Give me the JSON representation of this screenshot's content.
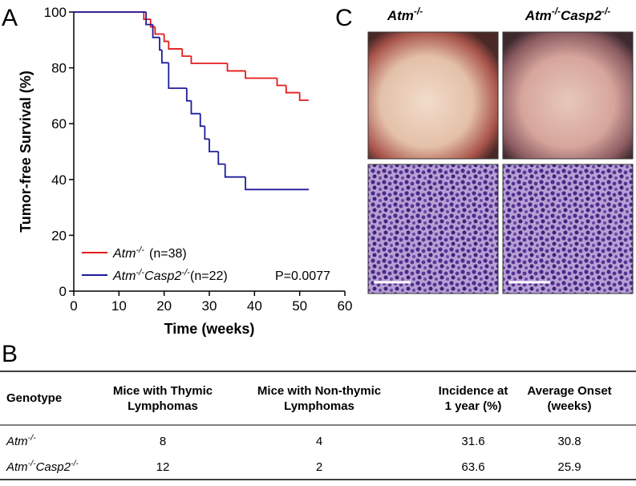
{
  "panel_labels": [
    "A",
    "B",
    "C"
  ],
  "chart_data": {
    "type": "step",
    "xlabel": "Time (weeks)",
    "ylabel": "Tumor-free Survival (%)",
    "xlim": [
      0,
      60
    ],
    "ylim": [
      0,
      100
    ],
    "xticks": [
      0,
      10,
      20,
      30,
      40,
      50,
      60
    ],
    "yticks": [
      0,
      20,
      40,
      60,
      80,
      100
    ],
    "series": [
      {
        "name": "Atm-/-",
        "n_label": "(n=38)",
        "color": "#e41a1c",
        "x": [
          0,
          15.5,
          17,
          18,
          20,
          21,
          24,
          26,
          34,
          38,
          45,
          47,
          50,
          52
        ],
        "values": [
          100,
          97.4,
          94.7,
          92.1,
          89.5,
          86.8,
          84.2,
          81.6,
          78.9,
          76.3,
          73.7,
          71.1,
          68.4,
          68.4
        ]
      },
      {
        "name": "Atm-/-Casp2-/-",
        "n_label": "(n=22)",
        "color": "#1c1c9c",
        "x": [
          0,
          16,
          17.5,
          19,
          19.5,
          21,
          25,
          26,
          28,
          29,
          30,
          32,
          33.5,
          38,
          52
        ],
        "values": [
          100,
          95.5,
          90.9,
          86.4,
          81.8,
          72.7,
          68.2,
          63.6,
          59.1,
          54.5,
          50,
          45.5,
          40.9,
          36.4,
          36.4
        ]
      }
    ],
    "annotation": "P=0.0077"
  },
  "images": {
    "headers": [
      "Atm-/-",
      "Atm-/-Casp2-/-"
    ]
  },
  "table": {
    "header": [
      [
        "Genotype"
      ],
      [
        "Mice with Thymic",
        "Lymphomas"
      ],
      [
        "Mice with Non-thymic",
        "Lymphomas"
      ],
      [
        "Incidence at",
        "1 year (%)"
      ],
      [
        "Average Onset",
        "(weeks)"
      ]
    ],
    "rows": [
      [
        "Atm-/-",
        8,
        4,
        31.6,
        30.8
      ],
      [
        "Atm-/-Casp2-/-",
        12,
        2,
        63.6,
        25.9
      ]
    ]
  }
}
